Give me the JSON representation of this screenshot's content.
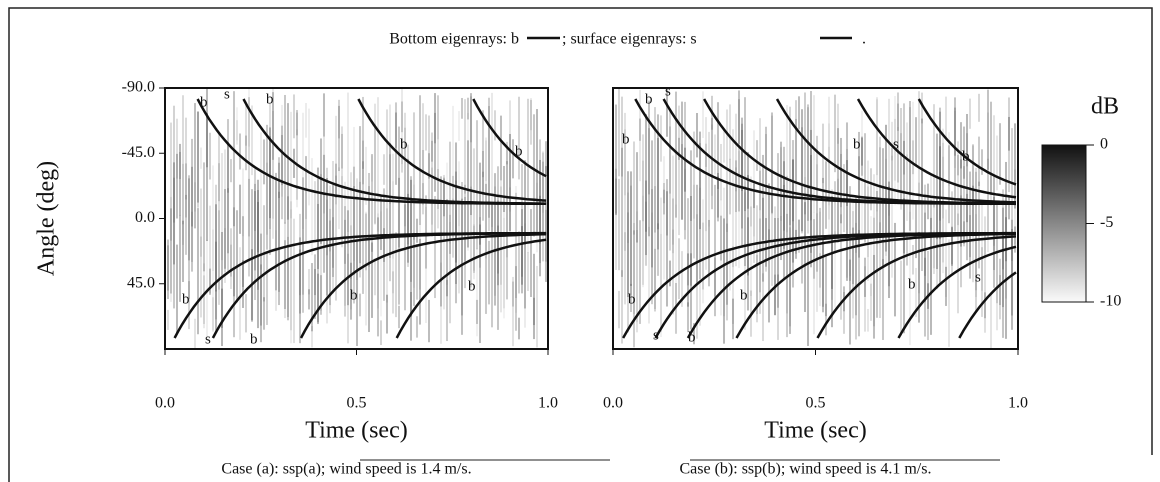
{
  "legend": {
    "bottom": "Bottom eigenrays: b",
    "surface": "; surface eigenrays: s",
    "end": "."
  },
  "chart_data": [
    {
      "type": "heatmap",
      "xlabel": "Time (sec)",
      "ylabel": "Angle (deg)",
      "caption": "Case (a): ssp(a); wind speed is 1.4 m/s.",
      "xlim": [
        0,
        1
      ],
      "xticks": [
        {
          "value": 0,
          "label": "0.0"
        },
        {
          "value": 0.5,
          "label": "0.5"
        },
        {
          "value": 1,
          "label": "1.0"
        }
      ],
      "ylim": [
        -90,
        90
      ],
      "yticks": [
        {
          "value": -90,
          "label": "-90.0"
        },
        {
          "value": -45,
          "label": "-45.0"
        },
        {
          "value": 0,
          "label": "0.0"
        },
        {
          "value": 45,
          "label": "45.0"
        }
      ],
      "ray_labels": [
        "b",
        "s",
        "b",
        "b",
        "b",
        "b",
        "s",
        "b",
        "b",
        "b"
      ]
    },
    {
      "type": "heatmap",
      "xlabel": "Time (sec)",
      "caption": "Case (b): ssp(b); wind speed is 4.1 m/s.",
      "xlim": [
        0,
        1
      ],
      "xticks": [
        {
          "value": 0,
          "label": "0.0"
        },
        {
          "value": 0.5,
          "label": "0.5"
        },
        {
          "value": 1,
          "label": "1.0"
        }
      ],
      "ylim": [
        -90,
        90
      ],
      "ray_labels": [
        "b",
        "s",
        "b",
        "b",
        "s",
        "b",
        "b",
        "s",
        "b",
        "b",
        "b",
        "s"
      ],
      "colorbar": {
        "label": "dB",
        "lim": [
          -10,
          0
        ],
        "ticks": [
          0,
          -5,
          -10
        ]
      }
    }
  ]
}
